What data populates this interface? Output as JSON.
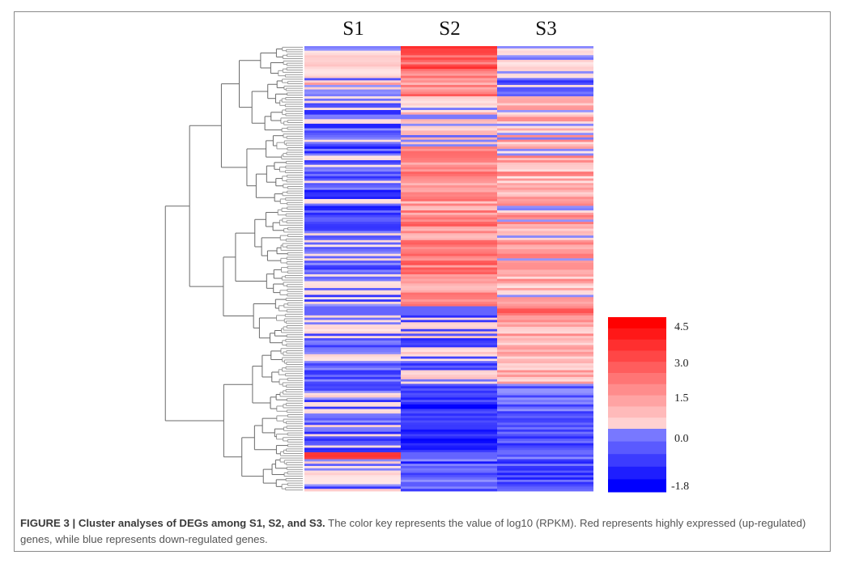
{
  "figure": {
    "caption_label": "FIGURE 3 | Cluster analyses of DEGs among S1, S2, and S3.",
    "caption_text": " The color key represents the value of log10 (RPKM). Red represents highly expressed (up-regulated) genes, while blue represents down-regulated genes."
  },
  "chart_data": {
    "type": "heatmap",
    "title": "",
    "columns": [
      "S1",
      "S2",
      "S3"
    ],
    "row_dendrogram": true,
    "value_label": "log10 (RPKM)",
    "color_key": {
      "ticks": [
        "4.5",
        "3.0",
        "1.5",
        "0.0",
        "-1.8"
      ],
      "range": [
        -1.8,
        4.5
      ],
      "low_color": "#0000ff",
      "mid_color": "#ffffff",
      "high_color": "#ff0000",
      "steps_above_zero": 10,
      "steps_below_zero": 5
    },
    "row_blocks": [
      {
        "rows": 12,
        "s1": [
          -0.3,
          0.8
        ],
        "s2": [
          1.5,
          3.8
        ],
        "s3": [
          -0.5,
          0.6
        ]
      },
      {
        "rows": 10,
        "s1": [
          -1.0,
          1.8
        ],
        "s2": [
          0.8,
          3.0
        ],
        "s3": [
          -1.6,
          0.4
        ]
      },
      {
        "rows": 22,
        "s1": [
          -1.4,
          0.4
        ],
        "s2": [
          -0.6,
          1.2
        ],
        "s3": [
          -0.4,
          2.0
        ]
      },
      {
        "rows": 30,
        "s1": [
          -1.6,
          0.3
        ],
        "s2": [
          0.6,
          2.6
        ],
        "s3": [
          -0.3,
          2.2
        ]
      },
      {
        "rows": 40,
        "s1": [
          -1.4,
          0.4
        ],
        "s2": [
          0.8,
          3.0
        ],
        "s3": [
          -0.2,
          2.2
        ]
      },
      {
        "rows": 4,
        "s1": [
          -0.6,
          -0.6
        ],
        "s2": [
          -0.6,
          -0.6
        ],
        "s3": [
          1.8,
          3.6
        ]
      },
      {
        "rows": 30,
        "s1": [
          -1.2,
          0.5
        ],
        "s2": [
          -1.4,
          0.8
        ],
        "s3": [
          0.2,
          2.0
        ]
      },
      {
        "rows": 30,
        "s1": [
          -1.6,
          0.6
        ],
        "s2": [
          -1.8,
          -0.6
        ],
        "s3": [
          -1.5,
          0.2
        ]
      },
      {
        "rows": 3,
        "s1": [
          2.8,
          3.6
        ],
        "s2": [
          -0.6,
          -0.6
        ],
        "s3": [
          -1.0,
          0.0
        ]
      },
      {
        "rows": 14,
        "s1": [
          -1.2,
          0.6
        ],
        "s2": [
          -1.6,
          0.0
        ],
        "s3": [
          -1.5,
          -0.2
        ]
      }
    ]
  }
}
